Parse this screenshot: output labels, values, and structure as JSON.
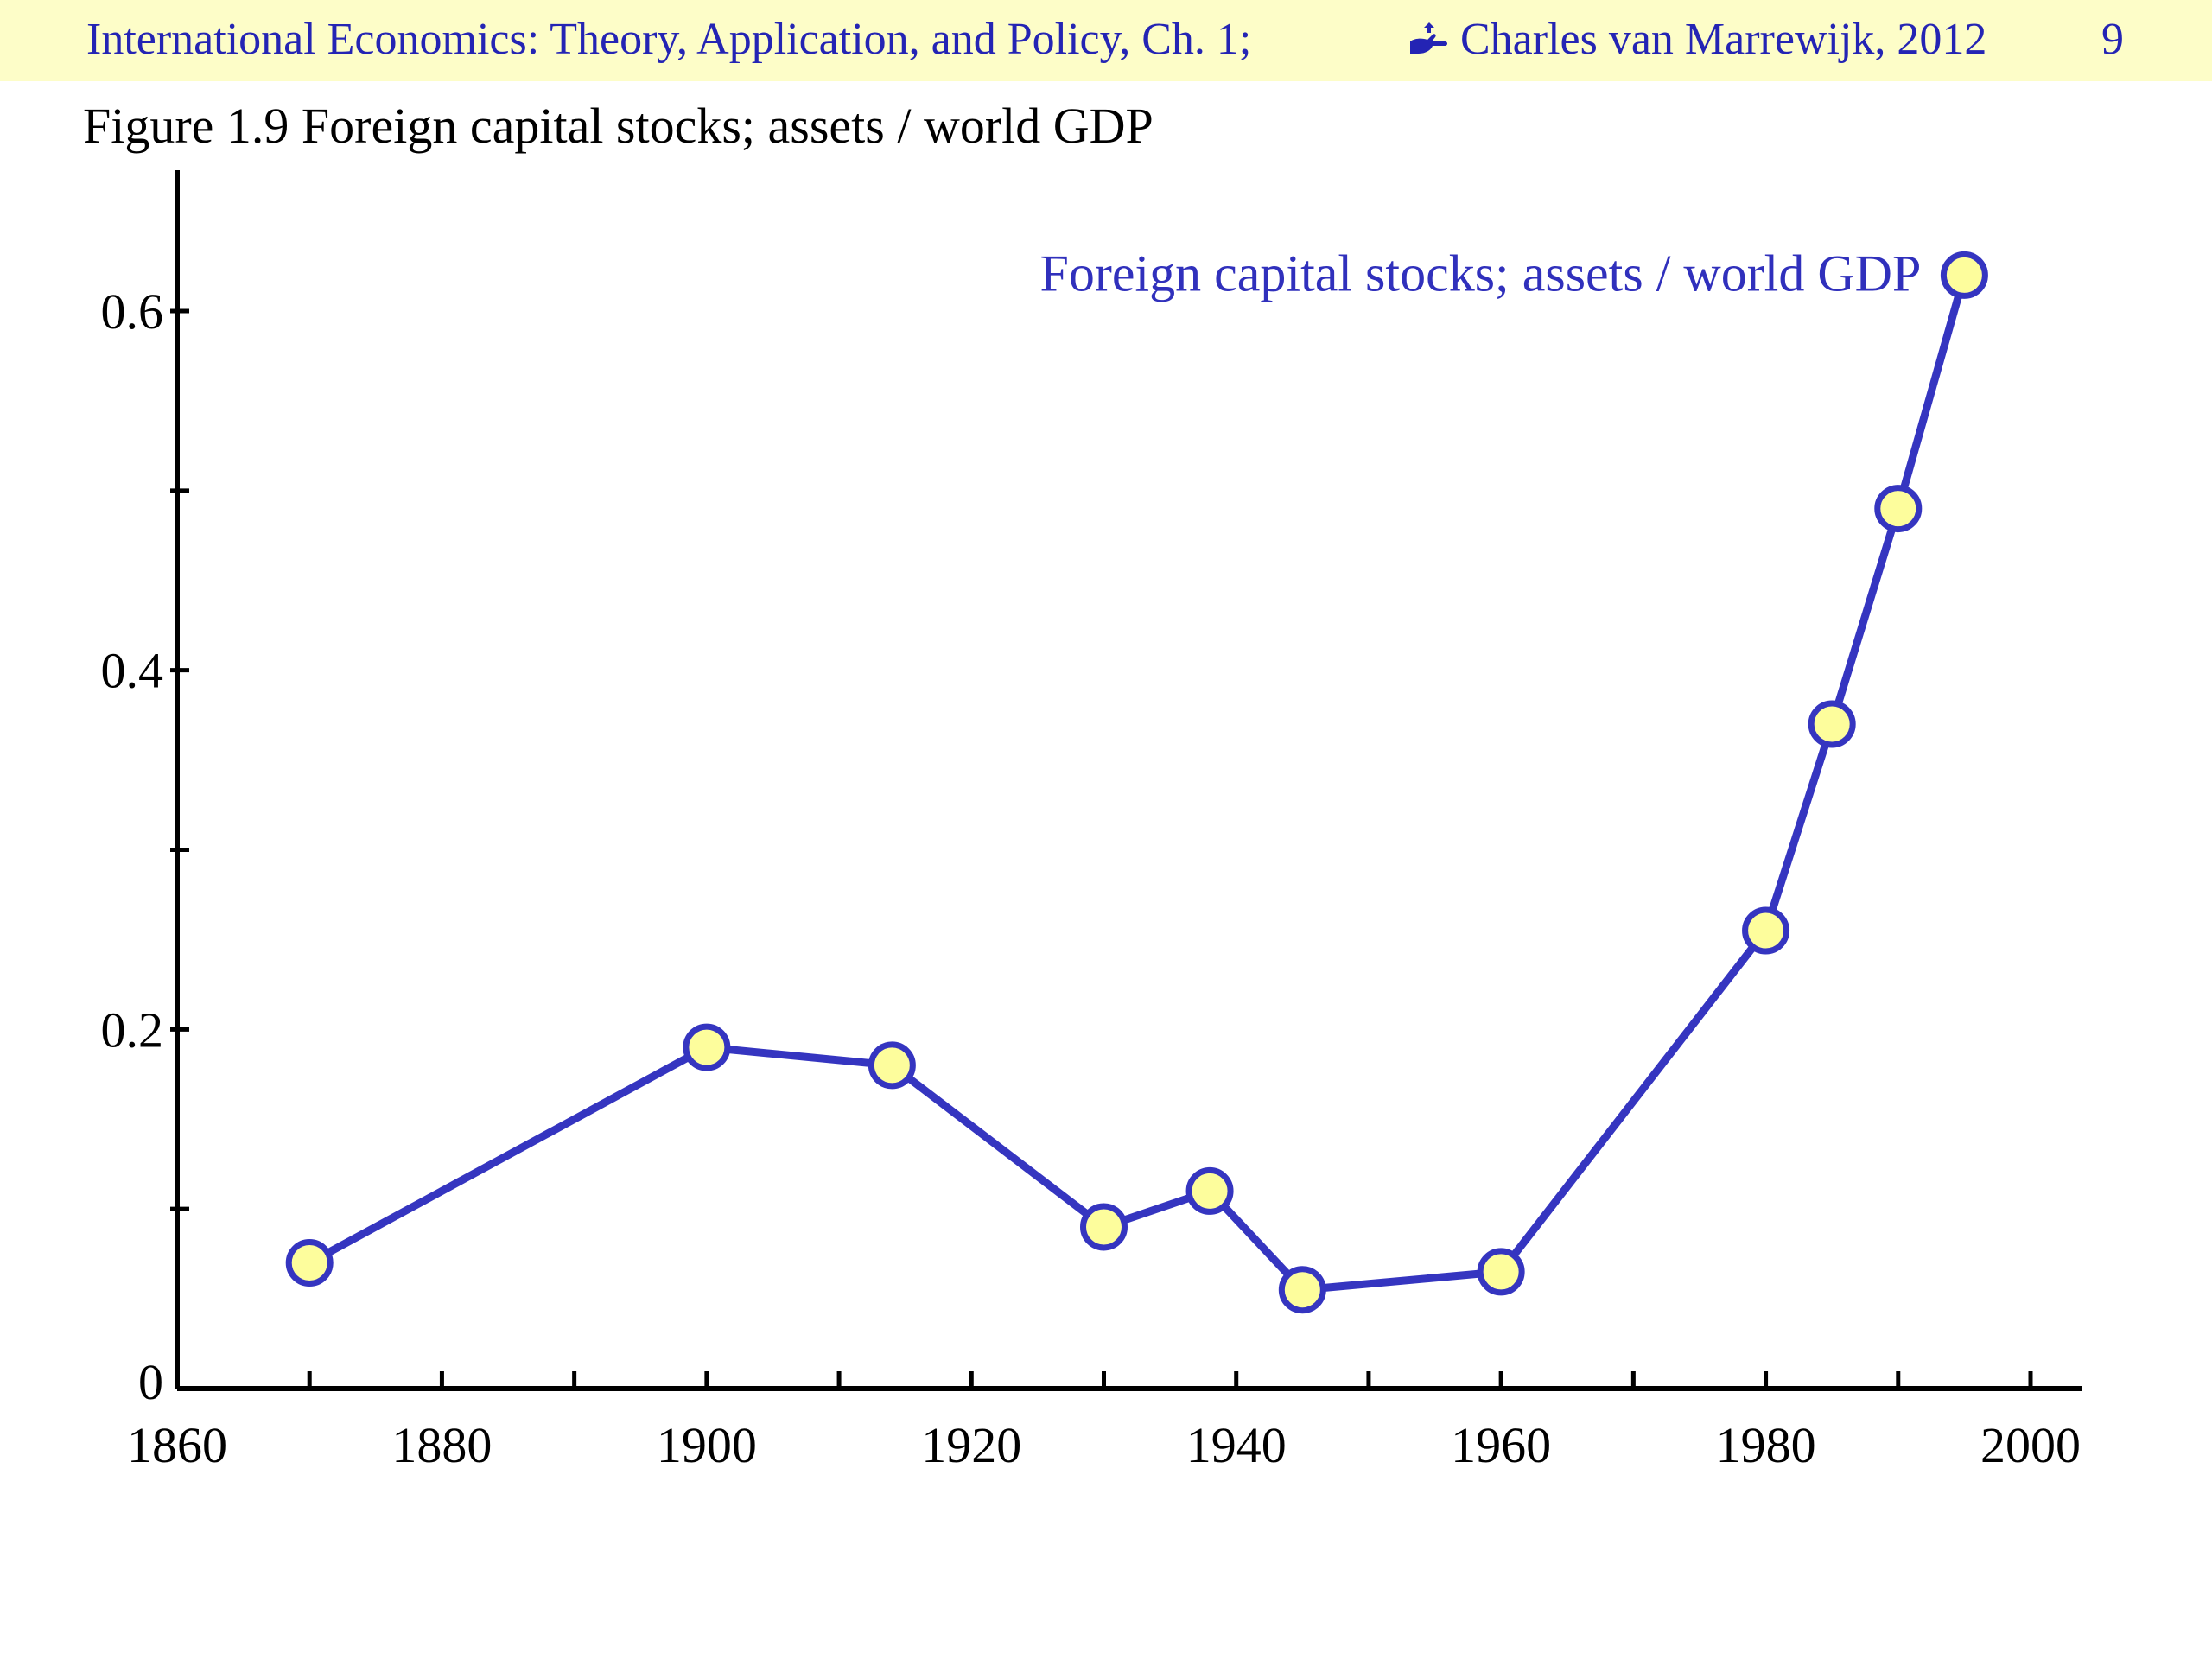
{
  "header": {
    "title": "International Economics: Theory, Application, and Policy, Ch. 1;",
    "author_icon": "copyright-hand-icon",
    "author": "Charles van Marrewijk, 2012",
    "page_number": "9",
    "background_color": "#fdfdc8",
    "text_color": "#2424b4"
  },
  "figure_title": "Figure 1.9 Foreign capital stocks; assets / world GDP",
  "chart_data": {
    "type": "line",
    "title": "Figure 1.9 Foreign capital stocks; assets / world GDP",
    "xlabel": "",
    "ylabel": "",
    "xlim": [
      1860,
      2000
    ],
    "ylim": [
      0,
      0.66
    ],
    "x_ticks": [
      1860,
      1880,
      1900,
      1920,
      1940,
      1960,
      1980,
      2000
    ],
    "x_tick_labels": [
      "1860",
      "1880",
      "1900",
      "1920",
      "1940",
      "1960",
      "1980",
      "2000"
    ],
    "x_minor_ticks": [
      1870,
      1890,
      1910,
      1930,
      1950,
      1970,
      1990
    ],
    "y_ticks": [
      0,
      0.2,
      0.4,
      0.6
    ],
    "y_tick_labels": [
      "0",
      "0.2",
      "0.4",
      "0.6"
    ],
    "y_minor_ticks": [
      0.1,
      0.3,
      0.5
    ],
    "grid": false,
    "legend": "series label at top-right",
    "series": [
      {
        "name": "Foreign capital stocks; assets / world GDP",
        "color": "#3535c0",
        "marker_fill": "#fdfd9c",
        "x": [
          1870,
          1900,
          1914,
          1930,
          1938,
          1945,
          1960,
          1980,
          1985,
          1990,
          1995
        ],
        "y": [
          0.07,
          0.19,
          0.18,
          0.09,
          0.11,
          0.055,
          0.065,
          0.255,
          0.37,
          0.49,
          0.62
        ]
      }
    ]
  }
}
